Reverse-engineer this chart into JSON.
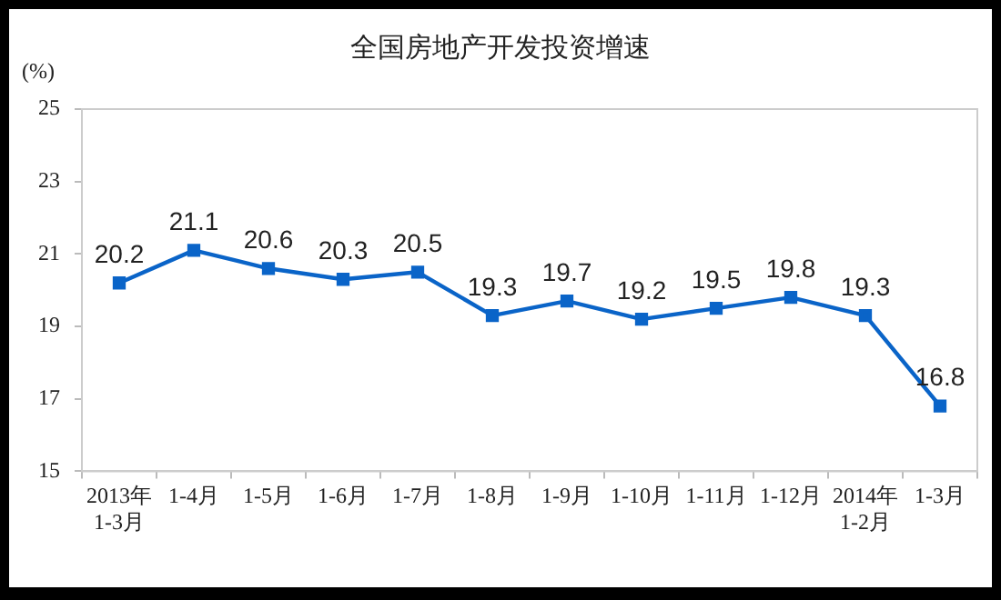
{
  "chart_data": {
    "type": "line",
    "title": "全国房地产开发投资增速",
    "ylabel": "(%)",
    "categories": [
      "2013年\n1-3月",
      "1-4月",
      "1-5月",
      "1-6月",
      "1-7月",
      "1-8月",
      "1-9月",
      "1-10月",
      "1-11月",
      "1-12月",
      "2014年\n1-2月",
      "1-3月"
    ],
    "series": [
      {
        "color": "#0a64c8",
        "values": [
          20.2,
          21.1,
          20.6,
          20.3,
          20.5,
          19.3,
          19.7,
          19.2,
          19.5,
          19.8,
          19.3,
          16.8
        ]
      }
    ],
    "ylim": [
      15,
      25
    ],
    "yticks": [
      15,
      17,
      19,
      21,
      23,
      25
    ],
    "grid": false,
    "legend": false,
    "marker": "square",
    "line_style": "solid",
    "data_labels": true
  }
}
